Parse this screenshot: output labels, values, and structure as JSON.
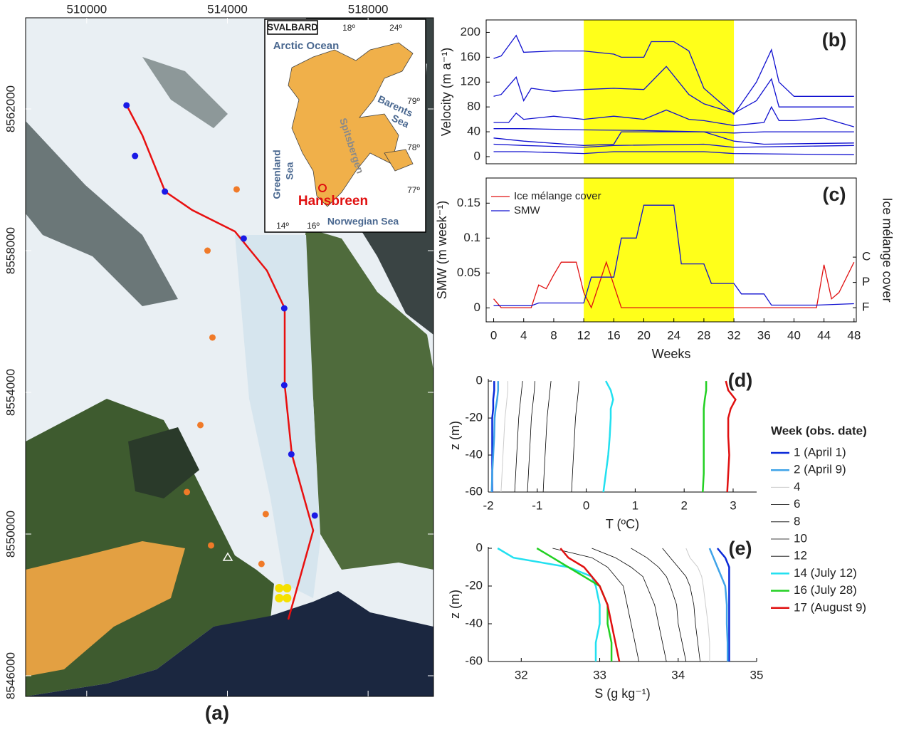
{
  "map": {
    "label": "(a)",
    "xlim": [
      508263,
      519859
    ],
    "xticks": [
      510000,
      514000,
      518000
    ],
    "ylim": [
      8545417,
      8564573
    ],
    "yticks": [
      8546000,
      8550000,
      8554000,
      8558000,
      8562000
    ],
    "points": [
      {
        "color": "#1a1ae6",
        "x": [
          511131,
          511374,
          512222,
          514464,
          515616,
          515616,
          515818,
          516484
        ],
        "y": [
          8562101,
          8560673,
          8559668,
          8558342,
          8556372,
          8554201,
          8552251,
          8550523
        ]
      },
      {
        "color": "#f07a28",
        "x": [
          514262,
          513434,
          513575,
          513232,
          512848,
          515090,
          513535,
          514969
        ],
        "y": [
          8559729,
          8558000,
          8555548,
          8553076,
          8551186,
          8550563,
          8549679,
          8549156
        ]
      },
      {
        "color": "#f5e000",
        "x": [
          515474,
          515696,
          515474,
          515696
        ],
        "y": [
          8548473,
          8548473,
          8548192,
          8548192
        ]
      }
    ],
    "inset": {
      "title": "SVALBARD",
      "labels": [
        "18º",
        "24º",
        "Arctic Ocean",
        "79º",
        "Barents",
        "Sea",
        "78º",
        "Greenland",
        "Sea",
        "Spitsbergen",
        "77º",
        "Hansbreen",
        "14º",
        "16º",
        "Norwegian Sea"
      ]
    }
  },
  "chart_data": [
    {
      "type": "line",
      "label": "(b)",
      "ylabel": "Velocity (m a⁻¹)",
      "xlim": [
        -1,
        48.3
      ],
      "ylim": [
        -11.5,
        220
      ],
      "yticks": [
        0,
        40,
        80,
        120,
        160,
        200
      ],
      "highlight": [
        12,
        32
      ],
      "series": [
        {
          "color": "#1010d0",
          "x": [
            0,
            1,
            3,
            4,
            8,
            12,
            16,
            17,
            20,
            21,
            24,
            26,
            28,
            32,
            35,
            37,
            38,
            40,
            48
          ],
          "values": [
            158,
            162,
            195,
            168,
            170,
            170,
            165,
            160,
            160,
            185,
            185,
            170,
            110,
            68,
            120,
            172,
            120,
            97,
            97
          ]
        },
        {
          "color": "#1010d0",
          "x": [
            0,
            1,
            3,
            4,
            5,
            8,
            12,
            16,
            20,
            23,
            26,
            28,
            32,
            35,
            37,
            38,
            40,
            44,
            48
          ],
          "values": [
            97,
            100,
            128,
            90,
            110,
            105,
            108,
            110,
            108,
            145,
            100,
            85,
            70,
            90,
            125,
            80,
            80,
            80,
            80
          ]
        },
        {
          "color": "#1010d0",
          "x": [
            0,
            2,
            3,
            4,
            8,
            12,
            16,
            20,
            23,
            26,
            28,
            32,
            36,
            37,
            38,
            40,
            44,
            46,
            48
          ],
          "values": [
            55,
            55,
            70,
            60,
            65,
            60,
            65,
            60,
            75,
            60,
            58,
            50,
            55,
            80,
            58,
            58,
            62,
            55,
            48
          ]
        },
        {
          "color": "#1010d0",
          "x": [
            0,
            4,
            12,
            20,
            28,
            32,
            36,
            40,
            48
          ],
          "values": [
            45,
            45,
            43,
            42,
            40,
            38,
            40,
            40,
            40
          ]
        },
        {
          "color": "#1010d0",
          "x": [
            0,
            4,
            12,
            16,
            17,
            28,
            32,
            36,
            48
          ],
          "values": [
            30,
            25,
            18,
            20,
            40,
            40,
            25,
            20,
            22
          ]
        },
        {
          "color": "#1010d0",
          "x": [
            0,
            4,
            12,
            16,
            28,
            32,
            48
          ],
          "values": [
            20,
            18,
            15,
            18,
            20,
            15,
            18
          ]
        },
        {
          "color": "#1010d0",
          "x": [
            0,
            4,
            12,
            16,
            28,
            32,
            48
          ],
          "values": [
            8,
            8,
            5,
            8,
            8,
            5,
            3
          ]
        }
      ]
    },
    {
      "type": "line",
      "label": "(c)",
      "ylabel": "SMW (m week⁻¹)",
      "xlabel": "Weeks",
      "y2label": "Ice mélange cover",
      "xlim": [
        -1,
        48.3
      ],
      "xticks": [
        0,
        4,
        8,
        12,
        16,
        20,
        24,
        28,
        32,
        36,
        40,
        44,
        48
      ],
      "ylim": [
        -0.02,
        0.186
      ],
      "yticks": [
        0,
        0.05,
        0.1,
        0.15
      ],
      "y2lim": [
        -0.56,
        5.13
      ],
      "y2ticks": [
        {
          "value": 0,
          "label": "F"
        },
        {
          "value": 1,
          "label": "P"
        },
        {
          "value": 2,
          "label": "C"
        }
      ],
      "highlight": [
        12,
        32
      ],
      "series": [
        {
          "name": "Ice mélange cover",
          "color": "#e01010",
          "axis": "y2",
          "x": [
            0,
            1,
            5,
            6,
            7,
            8,
            9,
            11,
            12,
            13,
            15,
            17,
            43,
            44,
            45,
            46,
            48
          ],
          "values": [
            0.35,
            0,
            0,
            0.9,
            0.75,
            1.3,
            1.8,
            1.8,
            0.6,
            0,
            1.8,
            0,
            0,
            1.7,
            0.35,
            0.6,
            1.8
          ]
        },
        {
          "name": "SMW",
          "color": "#1010d0",
          "x": [
            0,
            1,
            5,
            6,
            12,
            13,
            16,
            17,
            19,
            20,
            22,
            24,
            25,
            28,
            29,
            32,
            33,
            36,
            37,
            40,
            43,
            48
          ],
          "values": [
            0.003,
            0.003,
            0.003,
            0.007,
            0.007,
            0.044,
            0.044,
            0.1,
            0.1,
            0.147,
            0.147,
            0.147,
            0.063,
            0.063,
            0.035,
            0.035,
            0.02,
            0.02,
            0.004,
            0.004,
            0.004,
            0.006
          ]
        }
      ]
    },
    {
      "type": "profile",
      "label": "(d)",
      "ylabel": "z (m)",
      "xlabel": "T (ºC)",
      "legend_title": "Week (obs. date)",
      "xlim": [
        -2,
        3.48
      ],
      "xticks": [
        -2,
        -1,
        0,
        1,
        2,
        3
      ],
      "ylim": [
        -60,
        1.2
      ],
      "yticks": [
        -60,
        -40,
        -20,
        0
      ],
      "y": [
        0,
        -5,
        -10,
        -15,
        -20,
        -30,
        -40,
        -50,
        -60
      ],
      "series": [
        {
          "name": "1 (April 1)",
          "color": "#0a2ad8",
          "width": 2.5,
          "values": [
            -1.88,
            -1.88,
            -1.9,
            -1.9,
            -1.92,
            -1.92,
            -1.92,
            -1.92,
            -1.92
          ]
        },
        {
          "name": "2 (April 9)",
          "color": "#3fa3e8",
          "width": 2.5,
          "values": [
            -1.8,
            -1.8,
            -1.82,
            -1.85,
            -1.87,
            -1.88,
            -1.9,
            -1.92,
            -1.93
          ]
        },
        {
          "name": "4",
          "color": "#cccccc",
          "width": 1,
          "values": [
            -1.6,
            -1.6,
            -1.62,
            -1.64,
            -1.66,
            -1.68,
            -1.7,
            -1.72,
            -1.74
          ]
        },
        {
          "name": "6",
          "color": "#000000",
          "width": 0.8,
          "values": [
            -1.3,
            -1.32,
            -1.34,
            -1.36,
            -1.38,
            -1.4,
            -1.42,
            -1.44,
            -1.46
          ]
        },
        {
          "name": "8",
          "color": "#000000",
          "width": 0.8,
          "values": [
            -1.05,
            -1.06,
            -1.08,
            -1.1,
            -1.12,
            -1.14,
            -1.16,
            -1.18,
            -1.2
          ]
        },
        {
          "name": "10",
          "color": "#000000",
          "width": 0.8,
          "values": [
            -0.72,
            -0.74,
            -0.76,
            -0.78,
            -0.8,
            -0.82,
            -0.84,
            -0.86,
            -0.88
          ]
        },
        {
          "name": "12",
          "color": "#000000",
          "width": 0.8,
          "values": [
            -0.15,
            -0.16,
            -0.18,
            -0.2,
            -0.22,
            -0.24,
            -0.26,
            -0.28,
            -0.3
          ]
        },
        {
          "name": "14 (July 12)",
          "color": "#22e0f0",
          "width": 2.5,
          "values": [
            0.4,
            0.5,
            0.55,
            0.5,
            0.5,
            0.48,
            0.45,
            0.4,
            0.35
          ]
        },
        {
          "name": "16 (July 28)",
          "color": "#22d022",
          "width": 2.5,
          "values": [
            2.45,
            2.45,
            2.42,
            2.4,
            2.4,
            2.4,
            2.4,
            2.4,
            2.38
          ]
        },
        {
          "name": "17 (August 9)",
          "color": "#e01010",
          "width": 2.5,
          "values": [
            2.85,
            2.9,
            3.05,
            2.95,
            2.9,
            2.9,
            2.92,
            2.9,
            2.88
          ]
        }
      ]
    },
    {
      "type": "profile",
      "label": "(e)",
      "ylabel": "z (m)",
      "xlabel": "S (g kg⁻¹)",
      "xlim": [
        31.58,
        35
      ],
      "xticks": [
        32,
        33,
        34,
        35
      ],
      "ylim": [
        -60,
        0.75
      ],
      "yticks": [
        -60,
        -40,
        -20,
        0
      ],
      "y": [
        0,
        -5,
        -10,
        -15,
        -20,
        -30,
        -40,
        -50,
        -60
      ],
      "series": [
        {
          "color": "#0a2ad8",
          "width": 2.5,
          "values": [
            34.5,
            34.6,
            34.65,
            34.65,
            34.65,
            34.65,
            34.65,
            34.65,
            34.65
          ]
        },
        {
          "color": "#3fa3e8",
          "width": 2.5,
          "values": [
            34.4,
            34.45,
            34.5,
            34.55,
            34.6,
            34.62,
            34.62,
            34.63,
            34.63
          ]
        },
        {
          "color": "#cccccc",
          "width": 1,
          "values": [
            34.1,
            34.15,
            34.25,
            34.3,
            34.32,
            34.35,
            34.38,
            34.4,
            34.4
          ]
        },
        {
          "color": "#000000",
          "width": 0.8,
          "values": [
            33.8,
            33.9,
            34.0,
            34.1,
            34.15,
            34.2,
            34.22,
            34.25,
            34.28
          ]
        },
        {
          "color": "#000000",
          "width": 0.8,
          "values": [
            33.4,
            33.6,
            33.75,
            33.85,
            33.9,
            33.98,
            34.0,
            34.05,
            34.1
          ]
        },
        {
          "color": "#000000",
          "width": 0.8,
          "values": [
            32.9,
            33.2,
            33.4,
            33.55,
            33.6,
            33.7,
            33.75,
            33.8,
            33.85
          ]
        },
        {
          "color": "#000000",
          "width": 0.8,
          "values": [
            32.4,
            32.9,
            33.1,
            33.2,
            33.3,
            33.35,
            33.4,
            33.45,
            33.5
          ]
        },
        {
          "color": "#22e0f0",
          "width": 2.5,
          "values": [
            31.7,
            31.9,
            32.6,
            32.9,
            32.95,
            33.0,
            33.0,
            32.95,
            32.95
          ]
        },
        {
          "color": "#22d022",
          "width": 2.5,
          "values": [
            32.2,
            32.4,
            32.6,
            32.8,
            33.0,
            33.1,
            33.1,
            33.15,
            33.15
          ]
        },
        {
          "color": "#e01010",
          "width": 2.5,
          "values": [
            32.5,
            32.6,
            32.8,
            32.9,
            33.0,
            33.1,
            33.15,
            33.2,
            33.25
          ]
        }
      ]
    }
  ]
}
